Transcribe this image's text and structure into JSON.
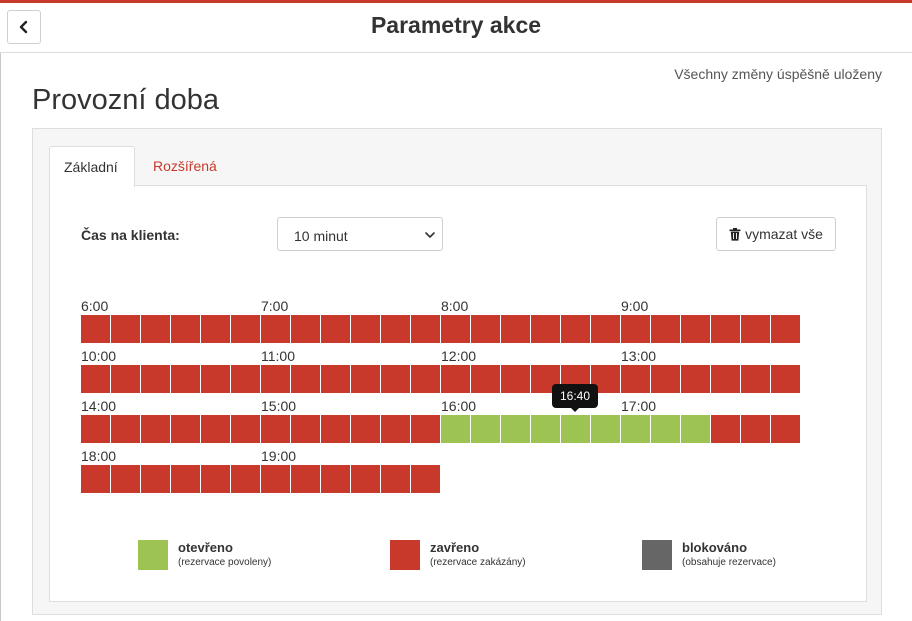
{
  "header": {
    "title": "Parametry akce",
    "back_icon": "chevron-left-icon"
  },
  "status": {
    "saved_text": "Všechny změny úspěšně uloženy"
  },
  "section": {
    "title": "Provozní doba"
  },
  "tabs": [
    {
      "label": "Základní",
      "active": true
    },
    {
      "label": "Rozšířená",
      "active": false
    }
  ],
  "client_time": {
    "label": "Čas na klienta:",
    "selected": "10 minut"
  },
  "clear_button": {
    "label": "vymazat vše",
    "icon": "trash-icon"
  },
  "schedule": {
    "slot_minutes": 10,
    "rows": [
      {
        "hours": [
          "6:00",
          "7:00",
          "8:00",
          "9:00"
        ],
        "slots": [
          "closed",
          "closed",
          "closed",
          "closed",
          "closed",
          "closed",
          "closed",
          "closed",
          "closed",
          "closed",
          "closed",
          "closed",
          "closed",
          "closed",
          "closed",
          "closed",
          "closed",
          "closed",
          "closed",
          "closed",
          "closed",
          "closed",
          "closed",
          "closed"
        ]
      },
      {
        "hours": [
          "10:00",
          "11:00",
          "12:00",
          "13:00"
        ],
        "slots": [
          "closed",
          "closed",
          "closed",
          "closed",
          "closed",
          "closed",
          "closed",
          "closed",
          "closed",
          "closed",
          "closed",
          "closed",
          "closed",
          "closed",
          "closed",
          "closed",
          "closed",
          "closed",
          "closed",
          "closed",
          "closed",
          "closed",
          "closed",
          "closed"
        ]
      },
      {
        "hours": [
          "14:00",
          "15:00",
          "16:00",
          "17:00"
        ],
        "slots": [
          "closed",
          "closed",
          "closed",
          "closed",
          "closed",
          "closed",
          "closed",
          "closed",
          "closed",
          "closed",
          "closed",
          "closed",
          "open",
          "open",
          "open",
          "open",
          "open",
          "open",
          "open",
          "open",
          "open",
          "closed",
          "closed",
          "closed"
        ]
      },
      {
        "hours": [
          "18:00",
          "19:00"
        ],
        "slots": [
          "closed",
          "closed",
          "closed",
          "closed",
          "closed",
          "closed",
          "closed",
          "closed",
          "closed",
          "closed",
          "closed",
          "closed"
        ]
      }
    ],
    "tooltip": "16:40"
  },
  "legend": [
    {
      "title": "otevřeno",
      "subtitle": "(rezervace povoleny)",
      "color": "#9dc352"
    },
    {
      "title": "zavřeno",
      "subtitle": "(rezervace zakázány)",
      "color": "#c8392b"
    },
    {
      "title": "blokováno",
      "subtitle": "(obsahuje rezervace)",
      "color": "#666666"
    }
  ],
  "colors": {
    "accent": "#c8392b",
    "open": "#9dc352",
    "closed": "#c8392b",
    "blocked": "#666666"
  }
}
